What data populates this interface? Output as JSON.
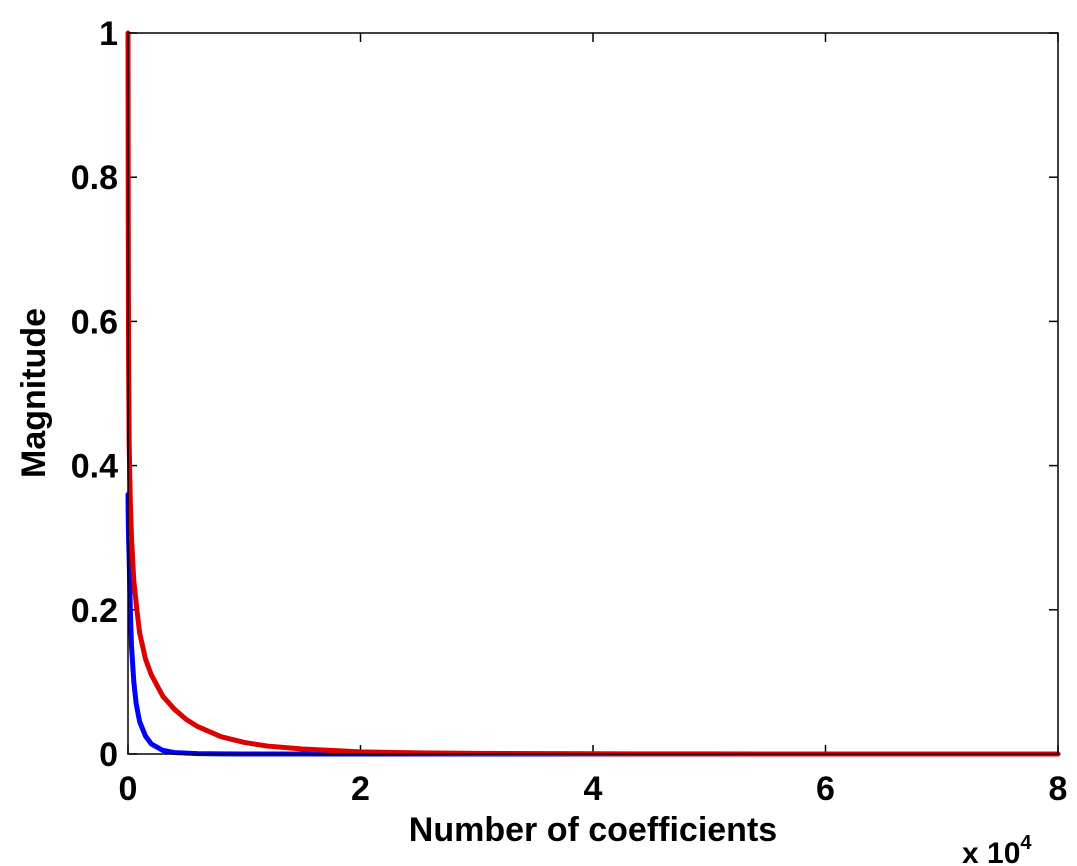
{
  "chart_data": {
    "type": "line",
    "xlabel": "Number of coefficients",
    "ylabel": "Magnitude",
    "x_multiplier_label": "x 10",
    "x_multiplier_exponent": "4",
    "xlim": [
      0,
      8
    ],
    "ylim": [
      0,
      1
    ],
    "x_ticks": [
      "0",
      "2",
      "4",
      "6",
      "8"
    ],
    "y_ticks": [
      "0",
      "0.2",
      "0.4",
      "0.6",
      "0.8",
      "1"
    ],
    "grid": false,
    "series": [
      {
        "color": "#0000ff",
        "x": [
          0,
          0.002,
          0.005,
          0.01,
          0.02,
          0.03,
          0.05,
          0.07,
          0.1,
          0.15,
          0.2,
          0.3,
          0.4,
          0.6,
          0.8,
          1.0,
          1.5,
          2.0,
          4.0,
          8.0
        ],
        "y": [
          0.36,
          0.33,
          0.3,
          0.27,
          0.2,
          0.15,
          0.1,
          0.07,
          0.045,
          0.025,
          0.014,
          0.005,
          0.002,
          0.0005,
          0.0001,
          0,
          0,
          0,
          0,
          0
        ]
      },
      {
        "color": "#dd0000",
        "x": [
          0,
          0.002,
          0.005,
          0.01,
          0.02,
          0.03,
          0.05,
          0.08,
          0.1,
          0.15,
          0.2,
          0.3,
          0.4,
          0.5,
          0.6,
          0.8,
          1.0,
          1.2,
          1.5,
          2.0,
          2.5,
          3.0,
          4.0,
          5.0,
          6.0,
          8.0
        ],
        "y": [
          1.0,
          0.75,
          0.55,
          0.43,
          0.35,
          0.3,
          0.24,
          0.195,
          0.168,
          0.132,
          0.11,
          0.08,
          0.062,
          0.048,
          0.038,
          0.024,
          0.016,
          0.011,
          0.007,
          0.003,
          0.0015,
          0.0008,
          0.0003,
          0.0001,
          0,
          0
        ]
      }
    ]
  }
}
